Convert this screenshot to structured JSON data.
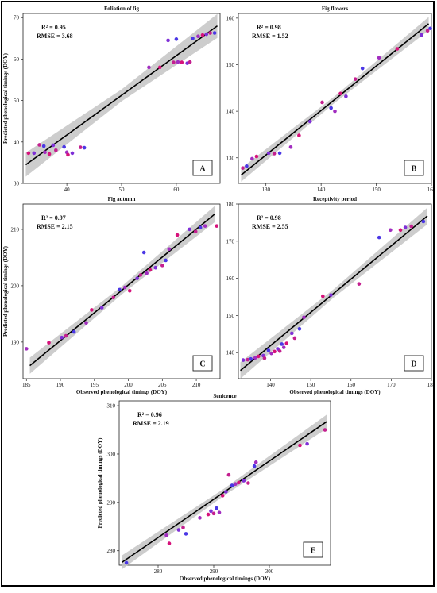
{
  "figure": {
    "shared_ylabel": "Predicted phenological timings (DOY)",
    "shared_xlabel": "Observed phenological timings (DOY)"
  },
  "colors": {
    "fit_line": "#000000",
    "confidence_band": "#c4c4c4",
    "point_palette": [
      "#d6127b",
      "#c41f8f",
      "#a22dc0",
      "#7f2fd7",
      "#4b37e5"
    ]
  },
  "chart_data": [
    {
      "id": "A",
      "type": "scatter",
      "title": "Foliation of fig",
      "panel_label": "A",
      "stats": [
        "R² = 0.95",
        "RMSE = 3.68"
      ],
      "xlim": [
        32,
        68
      ],
      "ylim": [
        30,
        71
      ],
      "xticks": [
        40,
        50,
        60
      ],
      "yticks": [
        30,
        40,
        50,
        60,
        70
      ],
      "ylabel": "Predicted phenological timings (DOY)",
      "xlabel": "",
      "fit": {
        "x": [
          32.5,
          67.5
        ],
        "y": [
          34.5,
          68.0
        ]
      },
      "band_halfwidth": 1.8,
      "points": [
        [
          33.0,
          37.3
        ],
        [
          34.0,
          37.3
        ],
        [
          35.0,
          39.3
        ],
        [
          35.8,
          39.0
        ],
        [
          36.0,
          37.5
        ],
        [
          36.8,
          37.1
        ],
        [
          37.5,
          39.2
        ],
        [
          38.0,
          38.0
        ],
        [
          39.5,
          38.8
        ],
        [
          40.0,
          37.5
        ],
        [
          40.2,
          36.9
        ],
        [
          41.0,
          37.3
        ],
        [
          42.5,
          38.7
        ],
        [
          43.2,
          38.6
        ],
        [
          55.0,
          58.0
        ],
        [
          57.0,
          58.0
        ],
        [
          58.5,
          64.5
        ],
        [
          59.5,
          59.2
        ],
        [
          60.0,
          64.8
        ],
        [
          60.3,
          59.3
        ],
        [
          61.0,
          59.2
        ],
        [
          62.0,
          59.0
        ],
        [
          62.5,
          59.3
        ],
        [
          63.0,
          65.0
        ],
        [
          64.0,
          65.5
        ],
        [
          64.8,
          65.8
        ],
        [
          65.5,
          66.0
        ],
        [
          66.2,
          66.3
        ],
        [
          67.0,
          66.3
        ]
      ]
    },
    {
      "id": "B",
      "type": "scatter",
      "title": "Fig flowers",
      "panel_label": "B",
      "stats": [
        "R² = 0.98",
        "RMSE = 1.52"
      ],
      "xlim": [
        125,
        160
      ],
      "ylim": [
        124.5,
        161
      ],
      "xticks": [
        130,
        140,
        150,
        160
      ],
      "yticks": [
        130,
        140,
        150,
        160
      ],
      "ylabel": "",
      "xlabel": "",
      "fit": {
        "x": [
          125.5,
          159.5
        ],
        "y": [
          126.3,
          158.8
        ]
      },
      "band_halfwidth": 0.9,
      "points": [
        [
          125.8,
          127.8
        ],
        [
          126.5,
          128.2
        ],
        [
          127.5,
          129.8
        ],
        [
          128.3,
          130.3
        ],
        [
          130.5,
          131.0
        ],
        [
          131.5,
          130.9
        ],
        [
          132.5,
          131.0
        ],
        [
          134.5,
          132.3
        ],
        [
          136.0,
          134.8
        ],
        [
          138.0,
          137.8
        ],
        [
          140.2,
          141.9
        ],
        [
          141.8,
          140.7
        ],
        [
          142.5,
          140.0
        ],
        [
          143.5,
          143.8
        ],
        [
          144.5,
          143.2
        ],
        [
          146.2,
          146.9
        ],
        [
          147.5,
          149.2
        ],
        [
          150.5,
          151.5
        ],
        [
          153.8,
          153.4
        ],
        [
          158.2,
          156.4
        ],
        [
          159.3,
          157.3
        ],
        [
          159.8,
          157.8
        ]
      ]
    },
    {
      "id": "C",
      "type": "scatter",
      "title": "Fig autumn",
      "panel_label": "C",
      "stats": [
        "R² = 0.97",
        "RMSE = 2.15"
      ],
      "xlim": [
        184.5,
        213.5
      ],
      "ylim": [
        183.5,
        214.5
      ],
      "xticks": [
        185,
        190,
        195,
        200,
        205,
        210
      ],
      "yticks": [
        190,
        200,
        210
      ],
      "ylabel": "Predicted phenological timings (DOY)",
      "xlabel": "Observed phenological timings (DOY)",
      "fit": {
        "x": [
          185.5,
          212.8
        ],
        "y": [
          185.8,
          212.8
        ]
      },
      "band_halfwidth": 0.9,
      "points": [
        [
          185.0,
          188.8
        ],
        [
          188.3,
          189.9
        ],
        [
          190.2,
          190.8
        ],
        [
          190.8,
          191.1
        ],
        [
          192.0,
          191.8
        ],
        [
          193.8,
          193.4
        ],
        [
          194.6,
          195.7
        ],
        [
          196.1,
          196.1
        ],
        [
          197.8,
          197.9
        ],
        [
          198.7,
          199.3
        ],
        [
          199.5,
          199.7
        ],
        [
          200.2,
          199.1
        ],
        [
          201.3,
          201.3
        ],
        [
          201.8,
          201.9
        ],
        [
          202.3,
          205.9
        ],
        [
          202.7,
          202.2
        ],
        [
          203.2,
          202.8
        ],
        [
          204.0,
          203.2
        ],
        [
          205.0,
          203.6
        ],
        [
          205.5,
          204.5
        ],
        [
          206.0,
          206.5
        ],
        [
          207.2,
          209.0
        ],
        [
          209.0,
          210.0
        ],
        [
          209.9,
          209.6
        ],
        [
          210.6,
          210.3
        ],
        [
          211.3,
          210.6
        ],
        [
          213.0,
          210.6
        ]
      ]
    },
    {
      "id": "D",
      "type": "scatter",
      "title": "Receptivity period",
      "panel_label": "D",
      "stats": [
        "R² = 0.98",
        "RMSE = 2.55"
      ],
      "xlim": [
        132,
        180
      ],
      "ylim": [
        133,
        180
      ],
      "xticks": [
        140,
        150,
        160,
        170,
        180
      ],
      "yticks": [
        140,
        150,
        160,
        170,
        180
      ],
      "ylabel": "",
      "xlabel": "Observed phenological timings (DOY)",
      "fit": {
        "x": [
          132.5,
          179.0
        ],
        "y": [
          135.2,
          176.8
        ]
      },
      "band_halfwidth": 1.4,
      "points": [
        [
          133.2,
          138.0
        ],
        [
          134.3,
          138.1
        ],
        [
          135.1,
          138.3
        ],
        [
          136.2,
          138.6
        ],
        [
          137.0,
          139.0
        ],
        [
          138.2,
          139.2
        ],
        [
          138.5,
          138.5
        ],
        [
          139.5,
          140.6
        ],
        [
          140.2,
          139.8
        ],
        [
          141.0,
          140.3
        ],
        [
          141.8,
          141.0
        ],
        [
          142.3,
          140.4
        ],
        [
          142.8,
          142.3
        ],
        [
          143.3,
          141.4
        ],
        [
          144.0,
          142.5
        ],
        [
          145.3,
          145.2
        ],
        [
          146.0,
          143.9
        ],
        [
          147.2,
          146.4
        ],
        [
          148.3,
          149.5
        ],
        [
          153.0,
          155.2
        ],
        [
          155.0,
          155.5
        ],
        [
          162.0,
          158.5
        ],
        [
          167.0,
          171.0
        ],
        [
          169.8,
          173.0
        ],
        [
          172.3,
          173.0
        ],
        [
          173.5,
          173.7
        ],
        [
          175.0,
          174.0
        ],
        [
          178.0,
          175.3
        ]
      ]
    },
    {
      "id": "E",
      "type": "scatter",
      "title": "Senicence",
      "panel_label": "E",
      "stats": [
        "R² = 0.96",
        "RMSE = 2.19"
      ],
      "xlim": [
        273,
        311
      ],
      "ylim": [
        277,
        311
      ],
      "xticks": [
        280,
        290,
        300
      ],
      "yticks": [
        280,
        290,
        300,
        310
      ],
      "ylabel": "Predicted phenological timings (DOY)",
      "xlabel": "Observed phenological timings (DOY)",
      "fit": {
        "x": [
          273.5,
          310.3
        ],
        "y": [
          277.6,
          306.7
        ]
      },
      "band_halfwidth": 0.9,
      "points": [
        [
          274.3,
          277.5
        ],
        [
          281.5,
          283.2
        ],
        [
          282.0,
          281.5
        ],
        [
          283.7,
          284.3
        ],
        [
          284.5,
          284.8
        ],
        [
          285.0,
          283.5
        ],
        [
          287.5,
          286.8
        ],
        [
          289.0,
          287.5
        ],
        [
          289.5,
          288.2
        ],
        [
          290.0,
          287.7
        ],
        [
          290.5,
          288.8
        ],
        [
          291.0,
          287.9
        ],
        [
          291.6,
          291.4
        ],
        [
          292.2,
          292.2
        ],
        [
          292.7,
          295.7
        ],
        [
          293.3,
          293.5
        ],
        [
          293.9,
          293.8
        ],
        [
          294.5,
          294.1
        ],
        [
          295.4,
          294.5
        ],
        [
          296.2,
          294.0
        ],
        [
          297.3,
          297.5
        ],
        [
          297.6,
          298.3
        ],
        [
          305.5,
          301.8
        ],
        [
          306.8,
          302.1
        ],
        [
          310.0,
          305.0
        ]
      ]
    }
  ]
}
